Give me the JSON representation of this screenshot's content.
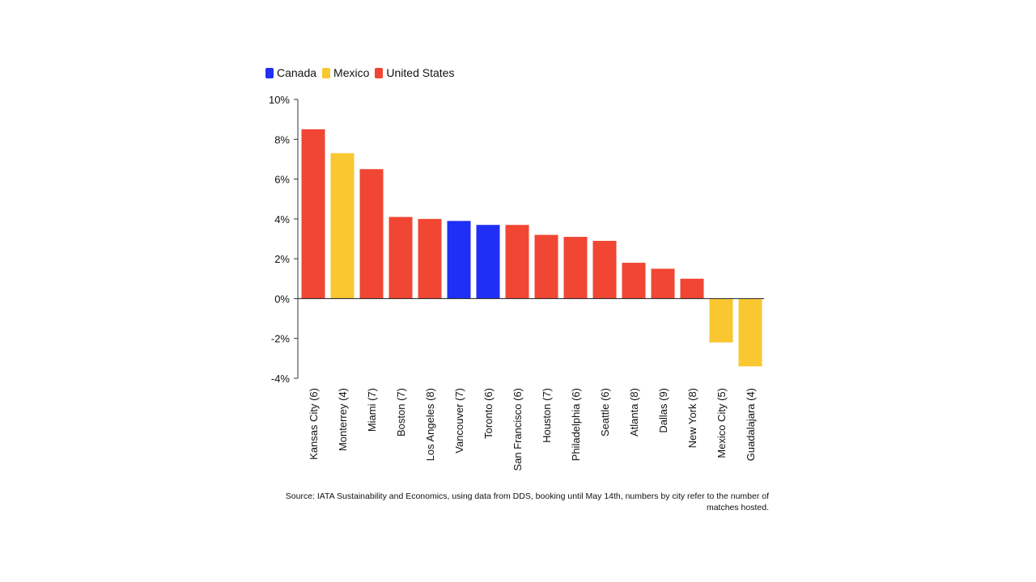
{
  "colors": {
    "Canada": "#1f2ff5",
    "Mexico": "#f9c730",
    "United States": "#f14633",
    "axis": "#333333"
  },
  "legend": {
    "items": [
      {
        "label": "Canada",
        "color": "#1f2ff5"
      },
      {
        "label": "Mexico",
        "color": "#f9c730"
      },
      {
        "label": "United States",
        "color": "#f14633"
      }
    ],
    "placement": "top-left"
  },
  "chart_data": {
    "type": "bar",
    "categories": [
      "Kansas City (6)",
      "Monterrey (4)",
      "Miami (7)",
      "Boston (7)",
      "Los Angeles (8)",
      "Vancouver (7)",
      "Toronto (6)",
      "San Francisco (6)",
      "Houston (7)",
      "Philadelphia (6)",
      "Seattle (6)",
      "Atlanta (8)",
      "Dallas (9)",
      "New York (8)",
      "Mexico City (5)",
      "Guadalajara (4)"
    ],
    "values": [
      8.5,
      7.3,
      6.5,
      4.1,
      4.0,
      3.9,
      3.7,
      3.7,
      3.2,
      3.1,
      2.9,
      1.8,
      1.5,
      1.0,
      -2.2,
      -3.4
    ],
    "country": [
      "United States",
      "Mexico",
      "United States",
      "United States",
      "United States",
      "Canada",
      "Canada",
      "United States",
      "United States",
      "United States",
      "United States",
      "United States",
      "United States",
      "United States",
      "Mexico",
      "Mexico"
    ],
    "ylim": [
      -4,
      10
    ],
    "yticks": [
      10,
      8,
      6,
      4,
      2,
      0,
      -2,
      -4
    ],
    "ytick_labels": [
      "10%",
      "8%",
      "6%",
      "4%",
      "2%",
      "0%",
      "-2%",
      "-4%"
    ],
    "grid": false
  },
  "source": "Source: IATA Sustainability and Economics, using data from DDS, booking until May 14th, numbers by city refer to the number of matches hosted."
}
